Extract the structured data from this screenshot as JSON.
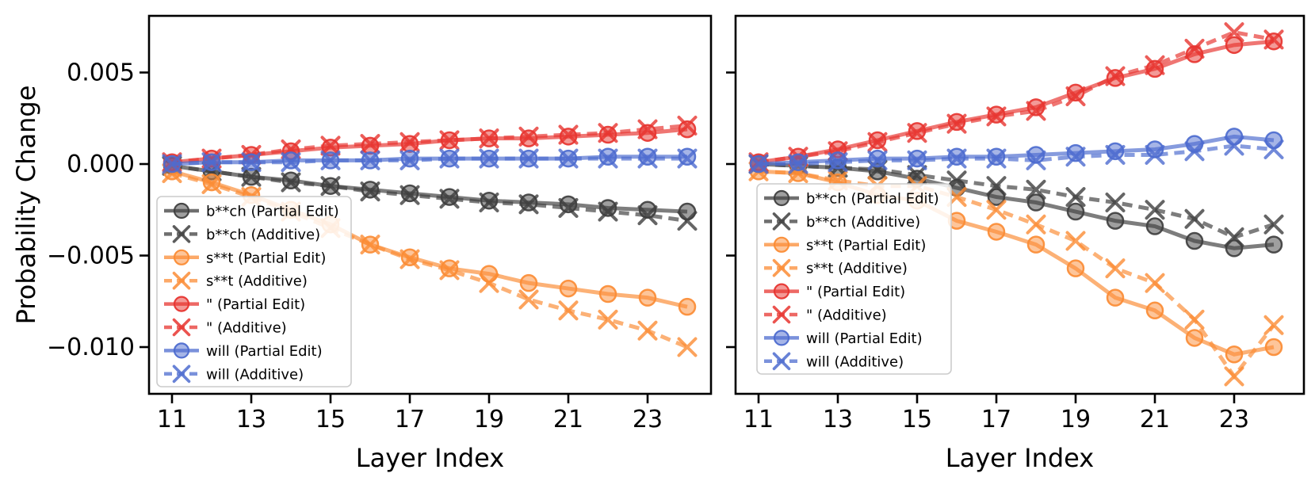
{
  "figure": {
    "ylabel": "Probability Change",
    "xlabel": "Layer Index",
    "background": "#ffffff",
    "colors": {
      "bitch": "#3f3f3f",
      "shit": "#fb8c35",
      "quote": "#e73530",
      "will": "#4d6ccf"
    },
    "legend_labels": [
      "b**ch (Partial Edit)",
      "b**ch (Additive)",
      "s**t (Partial Edit)",
      "s**t (Additive)",
      "\" (Partial Edit)",
      "\" (Additive)",
      "will (Partial Edit)",
      "will (Additive)"
    ]
  },
  "chart_data": [
    {
      "type": "line",
      "panel": "left",
      "xlabel": "Layer Index",
      "ylabel": "Probability Change",
      "x": [
        11,
        12,
        13,
        14,
        15,
        16,
        17,
        18,
        19,
        20,
        21,
        22,
        23,
        24
      ],
      "xticks": [
        11,
        13,
        15,
        17,
        19,
        21,
        23
      ],
      "yticks": [
        0.005,
        0.0,
        -0.005,
        -0.01
      ],
      "ytick_labels": [
        "0.005",
        "0.000",
        "−0.005",
        "−0.010"
      ],
      "ylim": [
        -0.01255,
        0.0081
      ],
      "grid": false,
      "legend_position": "lower left",
      "series": [
        {
          "name": "b**ch (Partial Edit)",
          "color_key": "bitch",
          "marker": "circle",
          "linestyle": "solid",
          "values": [
            -0.0001,
            -0.0004,
            -0.0007,
            -0.0009,
            -0.0012,
            -0.0014,
            -0.0016,
            -0.0018,
            -0.002,
            -0.0021,
            -0.0022,
            -0.0024,
            -0.0025,
            -0.0026
          ]
        },
        {
          "name": "b**ch (Additive)",
          "color_key": "bitch",
          "marker": "x",
          "linestyle": "dashed",
          "values": [
            -0.0001,
            -0.0004,
            -0.0007,
            -0.001,
            -0.0012,
            -0.0015,
            -0.0017,
            -0.0019,
            -0.0021,
            -0.0022,
            -0.0024,
            -0.0026,
            -0.0028,
            -0.0031
          ]
        },
        {
          "name": "s**t (Partial Edit)",
          "color_key": "shit",
          "marker": "circle",
          "linestyle": "solid",
          "values": [
            -0.0004,
            -0.001,
            -0.0017,
            -0.0025,
            -0.0033,
            -0.0044,
            -0.0051,
            -0.0057,
            -0.006,
            -0.0065,
            -0.0068,
            -0.0071,
            -0.0073,
            -0.0078
          ]
        },
        {
          "name": "s**t (Additive)",
          "color_key": "shit",
          "marker": "x",
          "linestyle": "dashed",
          "values": [
            -0.0005,
            -0.0011,
            -0.0018,
            -0.0026,
            -0.0035,
            -0.0044,
            -0.0052,
            -0.0058,
            -0.0065,
            -0.0074,
            -0.008,
            -0.0085,
            -0.0091,
            -0.01
          ]
        },
        {
          "name": "\" (Partial Edit)",
          "color_key": "quote",
          "marker": "circle",
          "linestyle": "solid",
          "values": [
            0.0001,
            0.0003,
            0.0005,
            0.0007,
            0.0009,
            0.001,
            0.0011,
            0.0013,
            0.0014,
            0.0014,
            0.0015,
            0.0016,
            0.0017,
            0.0019
          ]
        },
        {
          "name": "\" (Additive)",
          "color_key": "quote",
          "marker": "x",
          "linestyle": "dashed",
          "values": [
            0.0001,
            0.0003,
            0.0005,
            0.0008,
            0.001,
            0.0011,
            0.0012,
            0.0013,
            0.0014,
            0.0015,
            0.0016,
            0.0017,
            0.0019,
            0.0021
          ]
        },
        {
          "name": "will (Partial Edit)",
          "color_key": "will",
          "marker": "circle",
          "linestyle": "solid",
          "values": [
            0.0,
            0.0001,
            0.0001,
            0.0002,
            0.0002,
            0.0002,
            0.0003,
            0.0003,
            0.0003,
            0.0003,
            0.0003,
            0.0004,
            0.0004,
            0.0004
          ]
        },
        {
          "name": "will (Additive)",
          "color_key": "will",
          "marker": "x",
          "linestyle": "dashed",
          "values": [
            0.0,
            0.0001,
            0.0001,
            0.0001,
            0.0002,
            0.0002,
            0.0002,
            0.0003,
            0.0003,
            0.0003,
            0.0003,
            0.0003,
            0.0003,
            0.0003
          ]
        }
      ]
    },
    {
      "type": "line",
      "panel": "right",
      "xlabel": "Layer Index",
      "ylabel": "",
      "x": [
        11,
        12,
        13,
        14,
        15,
        16,
        17,
        18,
        19,
        20,
        21,
        22,
        23,
        24
      ],
      "xticks": [
        11,
        13,
        15,
        17,
        19,
        21,
        23
      ],
      "yticks": [
        0.005,
        0.0,
        -0.005,
        -0.01
      ],
      "ytick_labels": [],
      "ylim": [
        -0.01255,
        0.0081
      ],
      "grid": false,
      "legend_position": "lower left",
      "series": [
        {
          "name": "b**ch (Partial Edit)",
          "color_key": "bitch",
          "marker": "circle",
          "linestyle": "solid",
          "values": [
            0.0,
            -0.0001,
            -0.0002,
            -0.0004,
            -0.0008,
            -0.0013,
            -0.0018,
            -0.0021,
            -0.0026,
            -0.0031,
            -0.0034,
            -0.0042,
            -0.0046,
            -0.0044
          ]
        },
        {
          "name": "b**ch (Additive)",
          "color_key": "bitch",
          "marker": "x",
          "linestyle": "dashed",
          "values": [
            0.0,
            -0.0001,
            -0.0002,
            -0.0003,
            -0.0006,
            -0.0009,
            -0.0012,
            -0.0014,
            -0.0018,
            -0.0021,
            -0.0025,
            -0.003,
            -0.004,
            -0.0033
          ]
        },
        {
          "name": "s**t (Partial Edit)",
          "color_key": "shit",
          "marker": "circle",
          "linestyle": "solid",
          "values": [
            -0.0004,
            -0.0005,
            -0.001,
            -0.0017,
            -0.002,
            -0.0031,
            -0.0037,
            -0.0044,
            -0.0057,
            -0.0073,
            -0.008,
            -0.0095,
            -0.0104,
            -0.01
          ]
        },
        {
          "name": "s**t (Additive)",
          "color_key": "shit",
          "marker": "x",
          "linestyle": "dashed",
          "values": [
            -0.0004,
            -0.0005,
            -0.0009,
            -0.0012,
            -0.0012,
            -0.0018,
            -0.0025,
            -0.0033,
            -0.0042,
            -0.0057,
            -0.0065,
            -0.0085,
            -0.0116,
            -0.0088
          ]
        },
        {
          "name": "\" (Partial Edit)",
          "color_key": "quote",
          "marker": "circle",
          "linestyle": "solid",
          "values": [
            0.0001,
            0.0004,
            0.0008,
            0.0013,
            0.0018,
            0.0023,
            0.0027,
            0.0031,
            0.0039,
            0.0047,
            0.0052,
            0.006,
            0.0065,
            0.0067
          ]
        },
        {
          "name": "\" (Additive)",
          "color_key": "quote",
          "marker": "x",
          "linestyle": "dashed",
          "values": [
            0.0001,
            0.0004,
            0.0007,
            0.0012,
            0.0017,
            0.0022,
            0.0026,
            0.0029,
            0.0037,
            0.0048,
            0.0054,
            0.0063,
            0.0072,
            0.0068
          ]
        },
        {
          "name": "will (Partial Edit)",
          "color_key": "will",
          "marker": "circle",
          "linestyle": "solid",
          "values": [
            0.0,
            0.0001,
            0.0002,
            0.0003,
            0.0003,
            0.0004,
            0.0004,
            0.0005,
            0.0006,
            0.0007,
            0.0008,
            0.0011,
            0.0015,
            0.0013
          ]
        },
        {
          "name": "will (Additive)",
          "color_key": "will",
          "marker": "x",
          "linestyle": "dashed",
          "values": [
            0.0,
            0.0,
            0.0001,
            0.0002,
            0.0002,
            0.0003,
            0.0003,
            0.0002,
            0.0004,
            0.0005,
            0.0005,
            0.0007,
            0.001,
            0.0008
          ]
        }
      ]
    }
  ]
}
